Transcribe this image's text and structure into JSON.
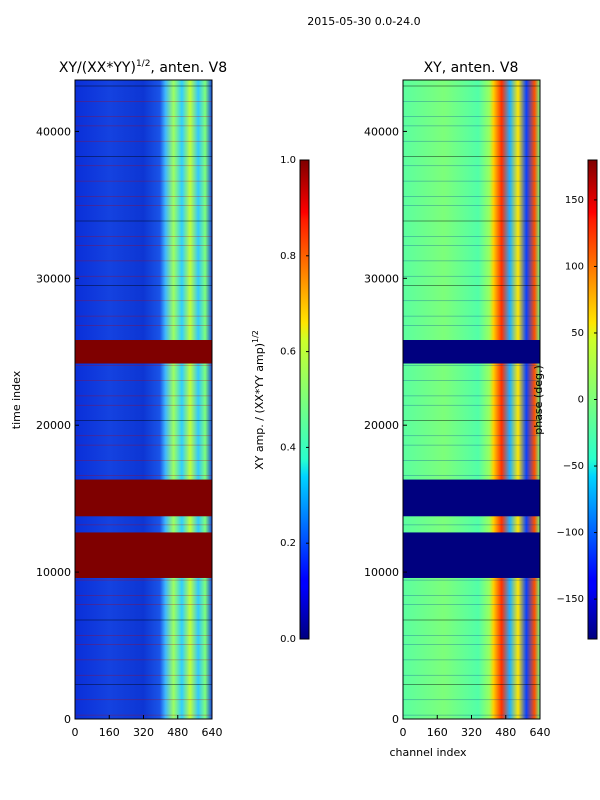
{
  "figure": {
    "suptitle": "2015-05-30 0.0-24.0"
  },
  "chart_data": [
    {
      "type": "heatmap",
      "title": "XY/(XX*YY)",
      "title_exponent": "1/2",
      "title_suffix": ", anten. V8",
      "xlabel": "",
      "ylabel": "time index",
      "xlim": [
        0,
        640
      ],
      "ylim": [
        0,
        43500
      ],
      "xticks": [
        0,
        160,
        320,
        480,
        640
      ],
      "yticks": [
        0,
        10000,
        20000,
        30000,
        40000
      ],
      "saturated_bands": [
        [
          24200,
          25800
        ],
        [
          13800,
          16300
        ],
        [
          9600,
          12700
        ]
      ],
      "colorbar": {
        "label": "XY amp. / (XX*YY amp)",
        "label_exponent": "1/2",
        "range": [
          0.0,
          1.0
        ],
        "ticks": [
          "0.0",
          "0.2",
          "0.4",
          "0.6",
          "0.8",
          "1.0"
        ]
      }
    },
    {
      "type": "heatmap",
      "title": "XY, anten. V8",
      "xlabel": "channel index",
      "ylabel": "",
      "xlim": [
        0,
        640
      ],
      "ylim": [
        0,
        43500
      ],
      "xticks": [
        0,
        160,
        320,
        480,
        640
      ],
      "yticks": [
        0,
        10000,
        20000,
        30000,
        40000
      ],
      "saturated_bands": [
        [
          24200,
          25800
        ],
        [
          13800,
          16300
        ],
        [
          9600,
          12700
        ]
      ],
      "colorbar": {
        "label": "phase (deg.)",
        "range": [
          -180,
          180
        ],
        "ticks": [
          "−150",
          "−100",
          "−50",
          "0",
          "50",
          "100",
          "150"
        ]
      }
    }
  ]
}
